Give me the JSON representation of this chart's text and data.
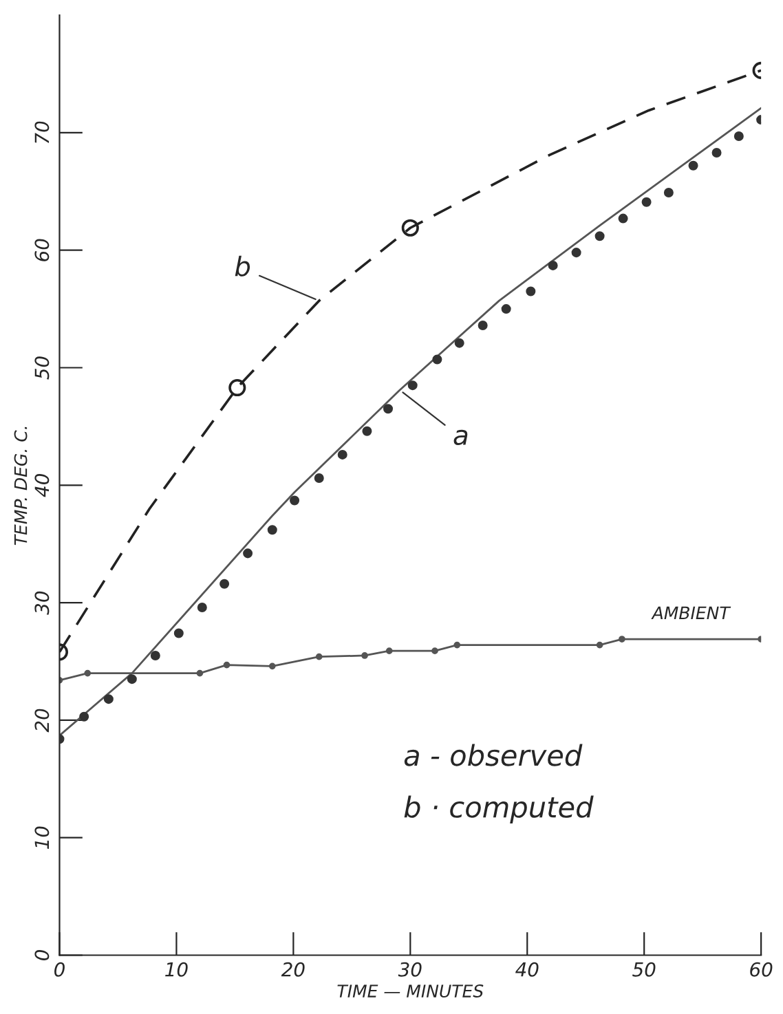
{
  "chart_data": {
    "type": "line",
    "xlabel": "TIME — MINUTES",
    "ylabel": "TEMP. DEG. C.",
    "xlim": [
      0,
      60
    ],
    "xticks": [
      0,
      10,
      20,
      30,
      40,
      50,
      60
    ],
    "ylim": [
      0,
      80
    ],
    "yticks": [
      0,
      10,
      20,
      30,
      40,
      50,
      60,
      70
    ],
    "grid": false,
    "legend": false,
    "series": [
      {
        "color": "#555555",
        "line_style": "solid",
        "marker": "none",
        "x": [
          0,
          6.2,
          18.2,
          20.1,
          29.1,
          37.6,
          46.2,
          60
        ],
        "values": [
          18.7,
          24.0,
          37.4,
          39.4,
          48.1,
          55.7,
          62.1,
          72.1
        ]
      },
      {
        "type": "scatter",
        "color": "#333333",
        "marker": "circle",
        "x": [
          0,
          2.1,
          4.2,
          6.2,
          8.2,
          10.2,
          12.2,
          14.1,
          16.1,
          18.2,
          20.1,
          22.2,
          24.2,
          26.3,
          28.1,
          30.2,
          32.3,
          34.2,
          36.2,
          38.2,
          40.3,
          42.2,
          44.2,
          46.2,
          48.2,
          50.2,
          52.1,
          54.2,
          56.2,
          58.1,
          60
        ],
        "values": [
          18.4,
          20.3,
          21.8,
          23.5,
          25.5,
          27.4,
          29.6,
          31.6,
          34.2,
          36.2,
          38.7,
          40.6,
          42.6,
          44.6,
          46.5,
          48.5,
          50.7,
          52.1,
          53.6,
          55.0,
          56.5,
          58.7,
          59.8,
          61.2,
          62.7,
          64.1,
          64.9,
          67.2,
          68.3,
          69.7,
          71.1
        ]
      },
      {
        "color": "#222222",
        "line_style": "dashed",
        "marker": "none",
        "x": [
          0,
          7.7,
          15.2,
          22.2,
          30,
          41.9,
          50.4,
          60
        ],
        "values": [
          25.8,
          38.0,
          48.3,
          55.7,
          61.9,
          68.1,
          71.9,
          75.3
        ]
      },
      {
        "type": "scatter",
        "color": "#222222",
        "marker": "circle_open",
        "x": [
          0,
          15.2,
          30,
          60
        ],
        "values": [
          25.8,
          48.3,
          61.9,
          75.3
        ]
      },
      {
        "color": "#555555",
        "line_style": "solid",
        "marker": "circle",
        "x": [
          0,
          2.4,
          12,
          14.3,
          18.2,
          22.2,
          26.1,
          28.2,
          32.1,
          34,
          46.2,
          48.1,
          60
        ],
        "values": [
          23.4,
          24.0,
          24.0,
          24.7,
          24.6,
          25.4,
          25.5,
          25.9,
          25.9,
          26.4,
          26.4,
          26.9,
          26.9
        ]
      }
    ],
    "annotations": [
      {
        "text": "b",
        "x": 22.2,
        "y": 55.7
      },
      {
        "text": "a",
        "x": 29.1,
        "y": 48.1
      },
      {
        "text": "AMBIENT",
        "x": 54,
        "y": 27
      },
      "a - observed",
      "b · computed"
    ]
  }
}
